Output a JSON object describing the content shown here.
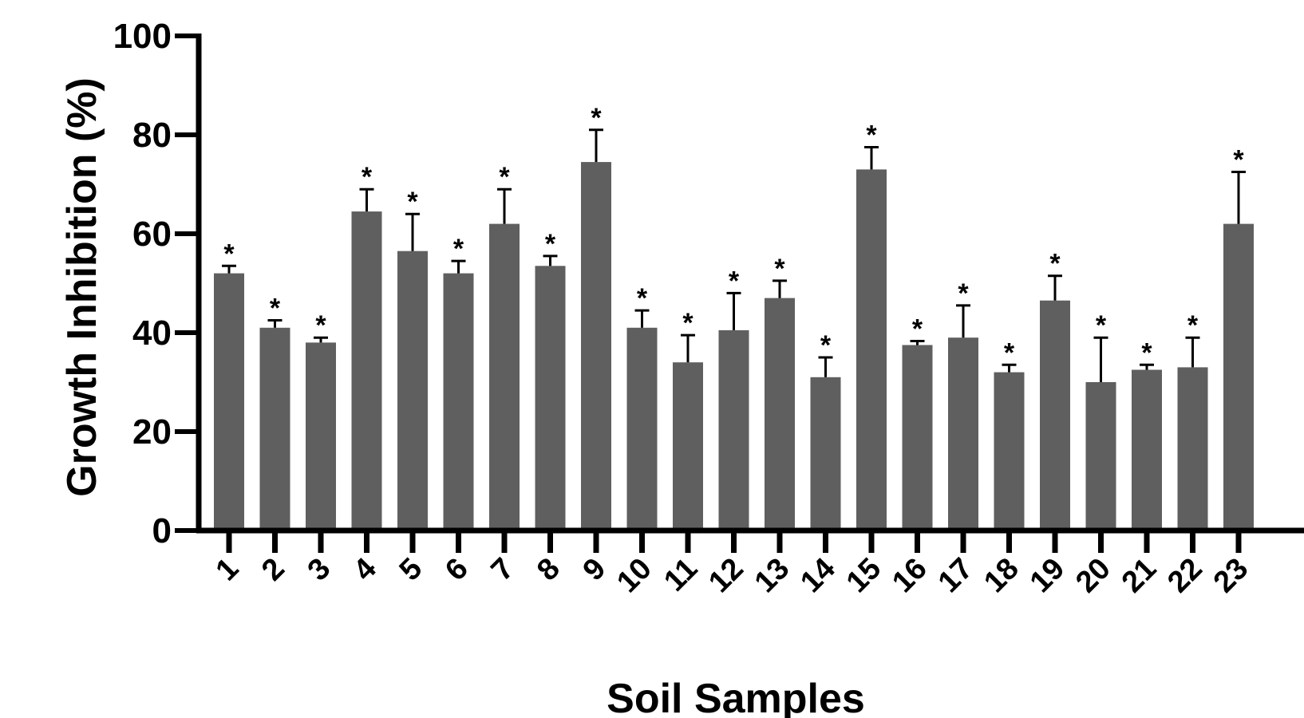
{
  "chart_data": {
    "type": "bar",
    "ylabel": "Growth Inhibition (%)",
    "xlabel": "Soil Samples",
    "ylim": [
      0,
      100
    ],
    "yticks": [
      0,
      20,
      40,
      60,
      80,
      100
    ],
    "categories": [
      "1",
      "2",
      "3",
      "4",
      "5",
      "6",
      "7",
      "8",
      "9",
      "10",
      "11",
      "12",
      "13",
      "14",
      "15",
      "16",
      "17",
      "18",
      "19",
      "20",
      "21",
      "22",
      "23"
    ],
    "values": [
      52,
      41,
      38,
      64.5,
      56.5,
      52,
      62,
      53.5,
      74.5,
      41,
      34,
      40.5,
      47,
      31,
      73,
      37.5,
      39,
      32,
      46.5,
      30,
      32.5,
      33,
      62
    ],
    "errors": [
      1.5,
      1.5,
      1,
      4.5,
      7.5,
      2.5,
      7,
      2,
      6.5,
      3.5,
      5.5,
      7.5,
      3.5,
      4,
      4.5,
      0.8,
      6.5,
      1.5,
      5,
      9,
      1,
      6,
      10.5
    ],
    "annotation": "*",
    "bar_color": "#5f5f5f",
    "axis_color": "#000000",
    "grid": false
  }
}
